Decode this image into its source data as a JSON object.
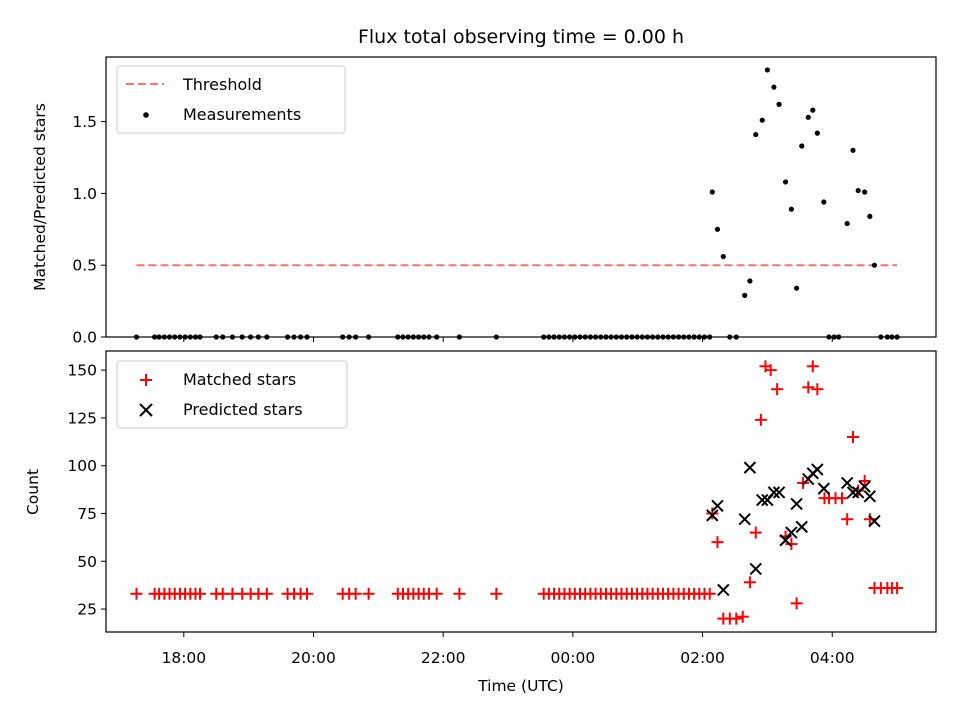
{
  "chart_data": [
    {
      "type": "scatter",
      "title": "Flux total observing time = 0.00 h",
      "ylabel": "Matched/Predicted stars",
      "xlim": [
        16.8,
        29.6
      ],
      "ylim": [
        0,
        1.95
      ],
      "yticks": [
        0.0,
        0.5,
        1.0,
        1.5
      ],
      "yticklabels": [
        "0.0",
        "0.5",
        "1.0",
        "1.5"
      ],
      "legend_position": "top-left",
      "threshold": {
        "name": "Threshold",
        "value": 0.5,
        "x_range": [
          17.27,
          29.0
        ],
        "color": "#ff7070",
        "style": "dashed"
      },
      "series": [
        {
          "name": "Measurements",
          "marker": "dot",
          "color": "#000000",
          "points": [
            [
              17.27,
              0.0
            ],
            [
              17.55,
              0.0
            ],
            [
              17.62,
              0.0
            ],
            [
              17.7,
              0.0
            ],
            [
              17.78,
              0.0
            ],
            [
              17.86,
              0.0
            ],
            [
              17.94,
              0.0
            ],
            [
              18.02,
              0.0
            ],
            [
              18.1,
              0.0
            ],
            [
              18.18,
              0.0
            ],
            [
              18.25,
              0.0
            ],
            [
              18.5,
              0.0
            ],
            [
              18.6,
              0.0
            ],
            [
              18.75,
              0.0
            ],
            [
              18.9,
              0.0
            ],
            [
              19.03,
              0.0
            ],
            [
              19.15,
              0.0
            ],
            [
              19.28,
              0.0
            ],
            [
              19.6,
              0.0
            ],
            [
              19.7,
              0.0
            ],
            [
              19.8,
              0.0
            ],
            [
              19.9,
              0.0
            ],
            [
              20.45,
              0.0
            ],
            [
              20.55,
              0.0
            ],
            [
              20.65,
              0.0
            ],
            [
              20.85,
              0.0
            ],
            [
              21.3,
              0.0
            ],
            [
              21.38,
              0.0
            ],
            [
              21.46,
              0.0
            ],
            [
              21.54,
              0.0
            ],
            [
              21.62,
              0.0
            ],
            [
              21.7,
              0.0
            ],
            [
              21.78,
              0.0
            ],
            [
              21.9,
              0.0
            ],
            [
              22.25,
              0.0
            ],
            [
              22.82,
              0.0
            ],
            [
              23.55,
              0.0
            ],
            [
              23.63,
              0.0
            ],
            [
              23.71,
              0.0
            ],
            [
              23.79,
              0.0
            ],
            [
              23.87,
              0.0
            ],
            [
              23.95,
              0.0
            ],
            [
              24.03,
              0.0
            ],
            [
              24.11,
              0.0
            ],
            [
              24.19,
              0.0
            ],
            [
              24.27,
              0.0
            ],
            [
              24.35,
              0.0
            ],
            [
              24.43,
              0.0
            ],
            [
              24.51,
              0.0
            ],
            [
              24.59,
              0.0
            ],
            [
              24.67,
              0.0
            ],
            [
              24.75,
              0.0
            ],
            [
              24.83,
              0.0
            ],
            [
              24.91,
              0.0
            ],
            [
              24.99,
              0.0
            ],
            [
              25.07,
              0.0
            ],
            [
              25.15,
              0.0
            ],
            [
              25.23,
              0.0
            ],
            [
              25.31,
              0.0
            ],
            [
              25.39,
              0.0
            ],
            [
              25.47,
              0.0
            ],
            [
              25.55,
              0.0
            ],
            [
              25.63,
              0.0
            ],
            [
              25.71,
              0.0
            ],
            [
              25.79,
              0.0
            ],
            [
              25.87,
              0.0
            ],
            [
              25.95,
              0.0
            ],
            [
              26.03,
              0.0
            ],
            [
              26.11,
              0.0
            ],
            [
              26.15,
              1.01
            ],
            [
              26.23,
              0.75
            ],
            [
              26.32,
              0.56
            ],
            [
              26.42,
              0.0
            ],
            [
              26.52,
              0.0
            ],
            [
              26.65,
              0.29
            ],
            [
              26.73,
              0.39
            ],
            [
              26.82,
              1.41
            ],
            [
              26.92,
              1.51
            ],
            [
              27.0,
              1.86
            ],
            [
              27.1,
              1.74
            ],
            [
              27.18,
              1.62
            ],
            [
              27.28,
              1.08
            ],
            [
              27.37,
              0.89
            ],
            [
              27.45,
              0.34
            ],
            [
              27.53,
              1.33
            ],
            [
              27.63,
              1.53
            ],
            [
              27.7,
              1.58
            ],
            [
              27.77,
              1.42
            ],
            [
              27.87,
              0.94
            ],
            [
              27.95,
              0.0
            ],
            [
              28.03,
              0.0
            ],
            [
              28.1,
              0.0
            ],
            [
              28.23,
              0.79
            ],
            [
              28.32,
              1.3
            ],
            [
              28.4,
              1.02
            ],
            [
              28.5,
              1.01
            ],
            [
              28.58,
              0.84
            ],
            [
              28.65,
              0.5
            ],
            [
              28.75,
              0.0
            ],
            [
              28.85,
              0.0
            ],
            [
              28.92,
              0.0
            ],
            [
              29.0,
              0.0
            ]
          ]
        }
      ]
    },
    {
      "type": "scatter",
      "xlabel": "Time (UTC)",
      "ylabel": "Count",
      "xlim": [
        16.8,
        29.6
      ],
      "ylim": [
        13,
        160
      ],
      "xticks": [
        18,
        20,
        22,
        24,
        26,
        28
      ],
      "xticklabels": [
        "18:00",
        "20:00",
        "22:00",
        "00:00",
        "02:00",
        "04:00"
      ],
      "yticks": [
        25,
        50,
        75,
        100,
        125,
        150
      ],
      "yticklabels": [
        "25",
        "50",
        "75",
        "100",
        "125",
        "150"
      ],
      "legend_position": "top-left",
      "series": [
        {
          "name": "Matched stars",
          "marker": "plus",
          "color": "#ff0000",
          "points": [
            [
              17.27,
              33
            ],
            [
              17.55,
              33
            ],
            [
              17.62,
              33
            ],
            [
              17.7,
              33
            ],
            [
              17.78,
              33
            ],
            [
              17.86,
              33
            ],
            [
              17.94,
              33
            ],
            [
              18.02,
              33
            ],
            [
              18.1,
              33
            ],
            [
              18.18,
              33
            ],
            [
              18.25,
              33
            ],
            [
              18.5,
              33
            ],
            [
              18.6,
              33
            ],
            [
              18.75,
              33
            ],
            [
              18.9,
              33
            ],
            [
              19.03,
              33
            ],
            [
              19.15,
              33
            ],
            [
              19.28,
              33
            ],
            [
              19.6,
              33
            ],
            [
              19.7,
              33
            ],
            [
              19.8,
              33
            ],
            [
              19.9,
              33
            ],
            [
              20.45,
              33
            ],
            [
              20.55,
              33
            ],
            [
              20.65,
              33
            ],
            [
              20.85,
              33
            ],
            [
              21.3,
              33
            ],
            [
              21.38,
              33
            ],
            [
              21.46,
              33
            ],
            [
              21.54,
              33
            ],
            [
              21.62,
              33
            ],
            [
              21.7,
              33
            ],
            [
              21.78,
              33
            ],
            [
              21.9,
              33
            ],
            [
              22.25,
              33
            ],
            [
              22.82,
              33
            ],
            [
              23.55,
              33
            ],
            [
              23.63,
              33
            ],
            [
              23.71,
              33
            ],
            [
              23.79,
              33
            ],
            [
              23.87,
              33
            ],
            [
              23.95,
              33
            ],
            [
              24.03,
              33
            ],
            [
              24.11,
              33
            ],
            [
              24.19,
              33
            ],
            [
              24.27,
              33
            ],
            [
              24.35,
              33
            ],
            [
              24.43,
              33
            ],
            [
              24.51,
              33
            ],
            [
              24.59,
              33
            ],
            [
              24.67,
              33
            ],
            [
              24.75,
              33
            ],
            [
              24.83,
              33
            ],
            [
              24.91,
              33
            ],
            [
              24.99,
              33
            ],
            [
              25.07,
              33
            ],
            [
              25.15,
              33
            ],
            [
              25.23,
              33
            ],
            [
              25.31,
              33
            ],
            [
              25.39,
              33
            ],
            [
              25.47,
              33
            ],
            [
              25.55,
              33
            ],
            [
              25.63,
              33
            ],
            [
              25.71,
              33
            ],
            [
              25.79,
              33
            ],
            [
              25.87,
              33
            ],
            [
              25.95,
              33
            ],
            [
              26.03,
              33
            ],
            [
              26.11,
              33
            ],
            [
              26.15,
              75
            ],
            [
              26.23,
              60
            ],
            [
              26.32,
              20
            ],
            [
              26.42,
              20
            ],
            [
              26.52,
              20
            ],
            [
              26.62,
              21
            ],
            [
              26.73,
              39
            ],
            [
              26.82,
              65
            ],
            [
              26.9,
              124
            ],
            [
              26.97,
              152
            ],
            [
              27.05,
              150
            ],
            [
              27.15,
              140
            ],
            [
              27.28,
              63
            ],
            [
              27.37,
              59
            ],
            [
              27.45,
              28
            ],
            [
              27.55,
              91
            ],
            [
              27.63,
              141
            ],
            [
              27.7,
              152
            ],
            [
              27.77,
              140
            ],
            [
              27.88,
              83
            ],
            [
              27.95,
              83
            ],
            [
              28.05,
              83
            ],
            [
              28.15,
              83
            ],
            [
              28.23,
              72
            ],
            [
              28.32,
              115
            ],
            [
              28.4,
              87
            ],
            [
              28.5,
              92
            ],
            [
              28.58,
              72
            ],
            [
              28.65,
              36
            ],
            [
              28.75,
              36
            ],
            [
              28.85,
              36
            ],
            [
              28.92,
              36
            ],
            [
              29.0,
              36
            ]
          ]
        },
        {
          "name": "Predicted stars",
          "marker": "x",
          "color": "#000000",
          "points": [
            [
              26.15,
              74
            ],
            [
              26.23,
              79
            ],
            [
              26.32,
              35
            ],
            [
              26.65,
              72
            ],
            [
              26.73,
              99
            ],
            [
              26.82,
              46
            ],
            [
              26.92,
              82
            ],
            [
              27.0,
              82
            ],
            [
              27.1,
              86
            ],
            [
              27.18,
              86
            ],
            [
              27.28,
              61
            ],
            [
              27.37,
              65
            ],
            [
              27.45,
              80
            ],
            [
              27.53,
              68
            ],
            [
              27.63,
              93
            ],
            [
              27.7,
              96
            ],
            [
              27.77,
              98
            ],
            [
              27.87,
              88
            ],
            [
              28.23,
              91
            ],
            [
              28.32,
              86
            ],
            [
              28.4,
              86
            ],
            [
              28.5,
              89
            ],
            [
              28.58,
              84
            ],
            [
              28.65,
              71
            ]
          ]
        }
      ]
    }
  ]
}
